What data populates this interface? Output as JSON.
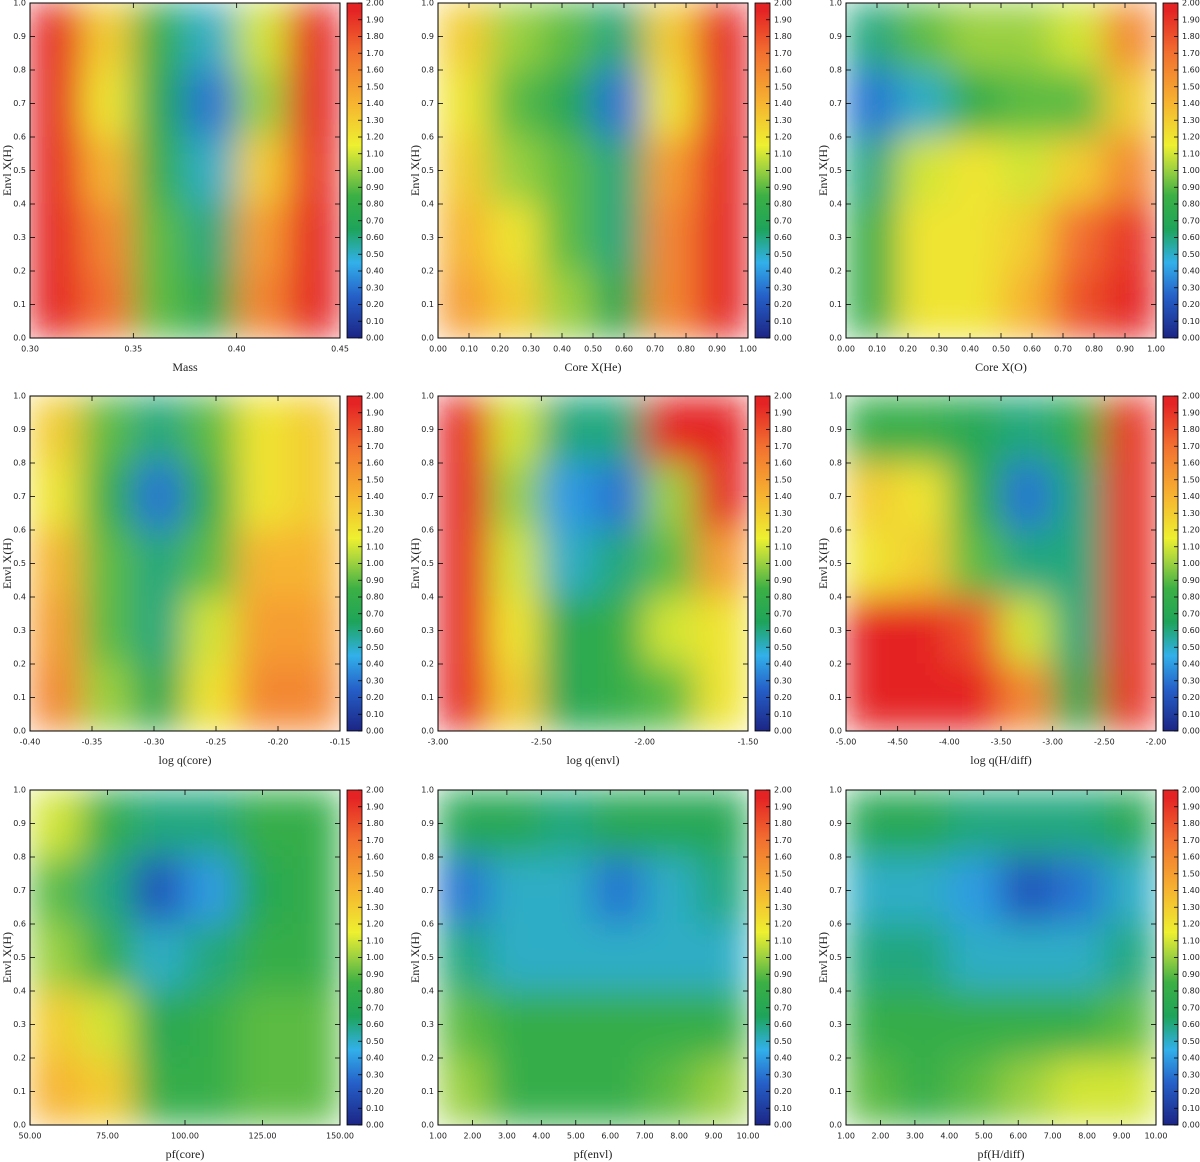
{
  "colorbar": {
    "zlim": [
      0,
      2
    ],
    "colormap": [
      [
        0,
        "#1c2585"
      ],
      [
        0.25,
        "#2560c8"
      ],
      [
        0.45,
        "#32b0ea"
      ],
      [
        0.65,
        "#1ea45a"
      ],
      [
        0.85,
        "#3cb044"
      ],
      [
        1.0,
        "#9ad040"
      ],
      [
        1.15,
        "#eef030"
      ],
      [
        1.4,
        "#f6b430"
      ],
      [
        1.7,
        "#f27030"
      ],
      [
        1.95,
        "#e42424"
      ],
      [
        2,
        "#e42424"
      ]
    ],
    "ticks": [
      {
        "value": 0,
        "label": "0.00"
      },
      {
        "value": 0.1,
        "label": "0.10"
      },
      {
        "value": 0.2,
        "label": "0.20"
      },
      {
        "value": 0.3,
        "label": "0.30"
      },
      {
        "value": 0.4,
        "label": "0.40"
      },
      {
        "value": 0.5,
        "label": "0.50"
      },
      {
        "value": 0.6,
        "label": "0.60"
      },
      {
        "value": 0.7,
        "label": "0.70"
      },
      {
        "value": 0.8,
        "label": "0.80"
      },
      {
        "value": 0.9,
        "label": "0.90"
      },
      {
        "value": 1,
        "label": "1.00"
      },
      {
        "value": 1.1,
        "label": "1.10"
      },
      {
        "value": 1.2,
        "label": "1.20"
      },
      {
        "value": 1.3,
        "label": "1.30"
      },
      {
        "value": 1.4,
        "label": "1.40"
      },
      {
        "value": 1.5,
        "label": "1.50"
      },
      {
        "value": 1.6,
        "label": "1.60"
      },
      {
        "value": 1.7,
        "label": "1.70"
      },
      {
        "value": 1.8,
        "label": "1.80"
      },
      {
        "value": 1.9,
        "label": "1.90"
      },
      {
        "value": 2,
        "label": "2.00"
      }
    ]
  },
  "chart_data": [
    {
      "type": "heatmap",
      "xlabel": "Mass",
      "ylabel": "Envl X(H)",
      "xlim": [
        0.3,
        0.45
      ],
      "ylim": [
        0,
        1
      ],
      "xticks": [
        {
          "value": 0.3,
          "label": "0.30"
        },
        0.35,
        {
          "value": 0.4,
          "label": "0.40"
        },
        0.45
      ],
      "yticks": [
        {
          "value": 0,
          "label": "0.0"
        },
        0.1,
        0.2,
        0.3,
        0.4,
        0.5,
        0.6,
        0.7,
        0.8,
        0.9,
        {
          "value": 1,
          "label": "1.0"
        }
      ],
      "z": [
        [
          2.0,
          1.3,
          0.8,
          0.5,
          1.1,
          2.0
        ],
        [
          2.0,
          1.2,
          0.7,
          0.3,
          1.0,
          2.0
        ],
        [
          2.0,
          1.4,
          0.8,
          0.5,
          1.3,
          1.9
        ],
        [
          2.0,
          1.6,
          0.9,
          0.6,
          1.5,
          2.0
        ],
        [
          2.0,
          1.7,
          0.9,
          0.7,
          1.6,
          2.0
        ]
      ]
    },
    {
      "type": "heatmap",
      "xlabel": "Core X(He)",
      "ylabel": "Envl X(H)",
      "xlim": [
        0,
        1
      ],
      "ylim": [
        0,
        1
      ],
      "xticks": [
        {
          "value": 0,
          "label": "0.00"
        },
        {
          "value": 0.1,
          "label": "0.10"
        },
        {
          "value": 0.2,
          "label": "0.20"
        },
        {
          "value": 0.3,
          "label": "0.30"
        },
        {
          "value": 0.4,
          "label": "0.40"
        },
        {
          "value": 0.5,
          "label": "0.50"
        },
        {
          "value": 0.6,
          "label": "0.60"
        },
        {
          "value": 0.7,
          "label": "0.70"
        },
        {
          "value": 0.8,
          "label": "0.80"
        },
        {
          "value": 0.9,
          "label": "0.90"
        },
        {
          "value": 1,
          "label": "1.00"
        }
      ],
      "yticks": [
        {
          "value": 0,
          "label": "0.0"
        },
        0.1,
        0.2,
        0.3,
        0.4,
        0.5,
        0.6,
        0.7,
        0.8,
        0.9,
        {
          "value": 1,
          "label": "1.0"
        }
      ],
      "z": [
        [
          1.3,
          1.0,
          0.9,
          0.6,
          1.3,
          2.0
        ],
        [
          1.2,
          0.9,
          0.7,
          0.3,
          1.2,
          2.0
        ],
        [
          1.3,
          1.0,
          0.9,
          0.6,
          1.5,
          2.0
        ],
        [
          1.4,
          1.2,
          0.9,
          0.6,
          1.6,
          2.0
        ],
        [
          1.5,
          1.3,
          1.0,
          0.7,
          1.6,
          2.0
        ]
      ]
    },
    {
      "type": "heatmap",
      "xlabel": "Core X(O)",
      "ylabel": "Envl X(H)",
      "xlim": [
        0,
        1
      ],
      "ylim": [
        0,
        1
      ],
      "xticks": [
        {
          "value": 0,
          "label": "0.00"
        },
        {
          "value": 0.1,
          "label": "0.10"
        },
        {
          "value": 0.2,
          "label": "0.20"
        },
        {
          "value": 0.3,
          "label": "0.30"
        },
        {
          "value": 0.4,
          "label": "0.40"
        },
        {
          "value": 0.5,
          "label": "0.50"
        },
        {
          "value": 0.6,
          "label": "0.60"
        },
        {
          "value": 0.7,
          "label": "0.70"
        },
        {
          "value": 0.8,
          "label": "0.80"
        },
        {
          "value": 0.9,
          "label": "0.90"
        },
        {
          "value": 1,
          "label": "1.00"
        }
      ],
      "yticks": [
        {
          "value": 0,
          "label": "0.0"
        },
        0.1,
        0.2,
        0.3,
        0.4,
        0.5,
        0.6,
        0.7,
        0.8,
        0.9,
        {
          "value": 1,
          "label": "1.0"
        }
      ],
      "z": [
        [
          0.6,
          0.9,
          1.0,
          1.0,
          1.1,
          1.6
        ],
        [
          0.3,
          0.5,
          0.8,
          0.9,
          0.9,
          1.3
        ],
        [
          0.6,
          1.1,
          1.2,
          1.1,
          1.3,
          1.6
        ],
        [
          0.8,
          1.2,
          1.2,
          1.3,
          1.7,
          1.9
        ],
        [
          0.8,
          1.2,
          1.2,
          1.4,
          1.8,
          2.0
        ]
      ]
    },
    {
      "type": "heatmap",
      "xlabel": "log q(core)",
      "ylabel": "Envl X(H)",
      "xlim": [
        -0.4,
        -0.15
      ],
      "ylim": [
        0,
        1
      ],
      "xticks": [
        {
          "value": -0.4,
          "label": "-0.40"
        },
        -0.35,
        {
          "value": -0.3,
          "label": "-0.30"
        },
        -0.25,
        {
          "value": -0.2,
          "label": "-0.20"
        },
        -0.15
      ],
      "yticks": [
        {
          "value": 0,
          "label": "0.0"
        },
        0.1,
        0.2,
        0.3,
        0.4,
        0.5,
        0.6,
        0.7,
        0.8,
        0.9,
        {
          "value": 1,
          "label": "1.0"
        }
      ],
      "z": [
        [
          1.3,
          0.9,
          0.6,
          0.9,
          1.2,
          1.3
        ],
        [
          1.2,
          0.8,
          0.3,
          0.8,
          1.2,
          1.3
        ],
        [
          1.4,
          0.9,
          0.6,
          0.9,
          1.4,
          1.4
        ],
        [
          1.5,
          0.9,
          0.6,
          1.1,
          1.5,
          1.5
        ],
        [
          1.6,
          1.0,
          0.7,
          1.2,
          1.6,
          1.6
        ]
      ]
    },
    {
      "type": "heatmap",
      "xlabel": "log q(envl)",
      "ylabel": "Envl X(H)",
      "xlim": [
        -3,
        -1.5
      ],
      "ylim": [
        0,
        1
      ],
      "xticks": [
        {
          "value": -3,
          "label": "-3.00"
        },
        {
          "value": -2.5,
          "label": "-2.50"
        },
        {
          "value": -2,
          "label": "-2.00"
        },
        {
          "value": -1.5,
          "label": "-1.50"
        }
      ],
      "yticks": [
        {
          "value": 0,
          "label": "0.0"
        },
        0.1,
        0.2,
        0.3,
        0.4,
        0.5,
        0.6,
        0.7,
        0.8,
        0.9,
        {
          "value": 1,
          "label": "1.0"
        }
      ],
      "z": [
        [
          2.0,
          1.1,
          0.6,
          0.6,
          2.0,
          2.0
        ],
        [
          2.0,
          1.0,
          0.4,
          0.3,
          1.0,
          2.0
        ],
        [
          2.0,
          1.1,
          0.5,
          0.6,
          0.9,
          1.5
        ],
        [
          2.0,
          1.2,
          0.7,
          0.8,
          1.1,
          1.2
        ],
        [
          2.0,
          1.3,
          0.7,
          0.8,
          0.9,
          1.2
        ]
      ]
    },
    {
      "type": "heatmap",
      "xlabel": "log q(H/diff)",
      "ylabel": "Envl X(H)",
      "xlim": [
        -5,
        -2
      ],
      "ylim": [
        0,
        1
      ],
      "xticks": [
        {
          "value": -5,
          "label": "-5.00"
        },
        {
          "value": -4.5,
          "label": "-4.50"
        },
        {
          "value": -4,
          "label": "-4.00"
        },
        {
          "value": -3.5,
          "label": "-3.50"
        },
        {
          "value": -3,
          "label": "-3.00"
        },
        {
          "value": -2.5,
          "label": "-2.50"
        },
        {
          "value": -2,
          "label": "-2.00"
        }
      ],
      "yticks": [
        {
          "value": 0,
          "label": "0.0"
        },
        0.1,
        0.2,
        0.3,
        0.4,
        0.5,
        0.6,
        0.7,
        0.8,
        0.9,
        {
          "value": 1,
          "label": "1.0"
        }
      ],
      "z": [
        [
          0.8,
          0.8,
          0.7,
          0.6,
          0.8,
          1.9
        ],
        [
          1.3,
          1.2,
          0.8,
          0.3,
          0.6,
          1.9
        ],
        [
          1.2,
          1.3,
          0.9,
          0.6,
          0.6,
          1.9
        ],
        [
          2.0,
          2.0,
          1.8,
          1.1,
          0.6,
          1.9
        ],
        [
          2.0,
          2.0,
          2.0,
          1.6,
          0.7,
          1.9
        ]
      ]
    },
    {
      "type": "heatmap",
      "xlabel": "pf(core)",
      "ylabel": "Envl X(H)",
      "xlim": [
        50,
        150
      ],
      "ylim": [
        0,
        1
      ],
      "xticks": [
        {
          "value": 50,
          "label": "50.00"
        },
        {
          "value": 75,
          "label": "75.00"
        },
        {
          "value": 100,
          "label": "100.00"
        },
        {
          "value": 125,
          "label": "125.00"
        },
        {
          "value": 150,
          "label": "150.00"
        }
      ],
      "yticks": [
        {
          "value": 0,
          "label": "0.0"
        },
        0.1,
        0.2,
        0.3,
        0.4,
        0.5,
        0.6,
        0.7,
        0.8,
        0.9,
        {
          "value": 1,
          "label": "1.0"
        }
      ],
      "z": [
        [
          1.1,
          0.8,
          0.6,
          0.6,
          0.8,
          0.8
        ],
        [
          0.9,
          0.6,
          0.2,
          0.4,
          0.7,
          0.8
        ],
        [
          1.0,
          0.8,
          0.5,
          0.6,
          0.8,
          0.8
        ],
        [
          1.3,
          1.1,
          0.7,
          0.8,
          0.9,
          0.9
        ],
        [
          1.4,
          1.3,
          0.8,
          0.8,
          0.9,
          0.9
        ]
      ]
    },
    {
      "type": "heatmap",
      "xlabel": "pf(envl)",
      "ylabel": "Envl X(H)",
      "xlim": [
        1,
        10
      ],
      "ylim": [
        0,
        1
      ],
      "xticks": [
        {
          "value": 1,
          "label": "1.00"
        },
        {
          "value": 2,
          "label": "2.00"
        },
        {
          "value": 3,
          "label": "3.00"
        },
        {
          "value": 4,
          "label": "4.00"
        },
        {
          "value": 5,
          "label": "5.00"
        },
        {
          "value": 6,
          "label": "6.00"
        },
        {
          "value": 7,
          "label": "7.00"
        },
        {
          "value": 8,
          "label": "8.00"
        },
        {
          "value": 9,
          "label": "9.00"
        },
        {
          "value": 10,
          "label": "10.00"
        }
      ],
      "yticks": [
        {
          "value": 0,
          "label": "0.0"
        },
        0.1,
        0.2,
        0.3,
        0.4,
        0.5,
        0.6,
        0.7,
        0.8,
        0.9,
        {
          "value": 1,
          "label": "1.0"
        }
      ],
      "z": [
        [
          0.7,
          0.7,
          0.6,
          0.7,
          0.7,
          0.7
        ],
        [
          0.3,
          0.5,
          0.5,
          0.3,
          0.5,
          0.6
        ],
        [
          0.6,
          0.5,
          0.5,
          0.5,
          0.5,
          0.5
        ],
        [
          0.9,
          0.8,
          0.8,
          0.8,
          0.8,
          0.8
        ],
        [
          1.0,
          0.8,
          0.8,
          0.8,
          0.9,
          1.0
        ]
      ]
    },
    {
      "type": "heatmap",
      "xlabel": "pf(H/diff)",
      "ylabel": "Envl X(H)",
      "xlim": [
        1,
        10
      ],
      "ylim": [
        0,
        1
      ],
      "xticks": [
        {
          "value": 1,
          "label": "1.00"
        },
        {
          "value": 2,
          "label": "2.00"
        },
        {
          "value": 3,
          "label": "3.00"
        },
        {
          "value": 4,
          "label": "4.00"
        },
        {
          "value": 5,
          "label": "5.00"
        },
        {
          "value": 6,
          "label": "6.00"
        },
        {
          "value": 7,
          "label": "7.00"
        },
        {
          "value": 8,
          "label": "8.00"
        },
        {
          "value": 9,
          "label": "9.00"
        },
        {
          "value": 10,
          "label": "10.00"
        }
      ],
      "yticks": [
        {
          "value": 0,
          "label": "0.0"
        },
        0.1,
        0.2,
        0.3,
        0.4,
        0.5,
        0.6,
        0.7,
        0.8,
        0.9,
        {
          "value": 1,
          "label": "1.0"
        }
      ],
      "z": [
        [
          0.7,
          0.7,
          0.6,
          0.6,
          0.6,
          0.7
        ],
        [
          0.5,
          0.5,
          0.4,
          0.2,
          0.3,
          0.5
        ],
        [
          0.6,
          0.6,
          0.5,
          0.5,
          0.5,
          0.6
        ],
        [
          0.8,
          0.8,
          0.8,
          0.8,
          0.8,
          0.9
        ],
        [
          0.9,
          0.8,
          0.9,
          1.0,
          1.1,
          1.1
        ]
      ]
    }
  ]
}
